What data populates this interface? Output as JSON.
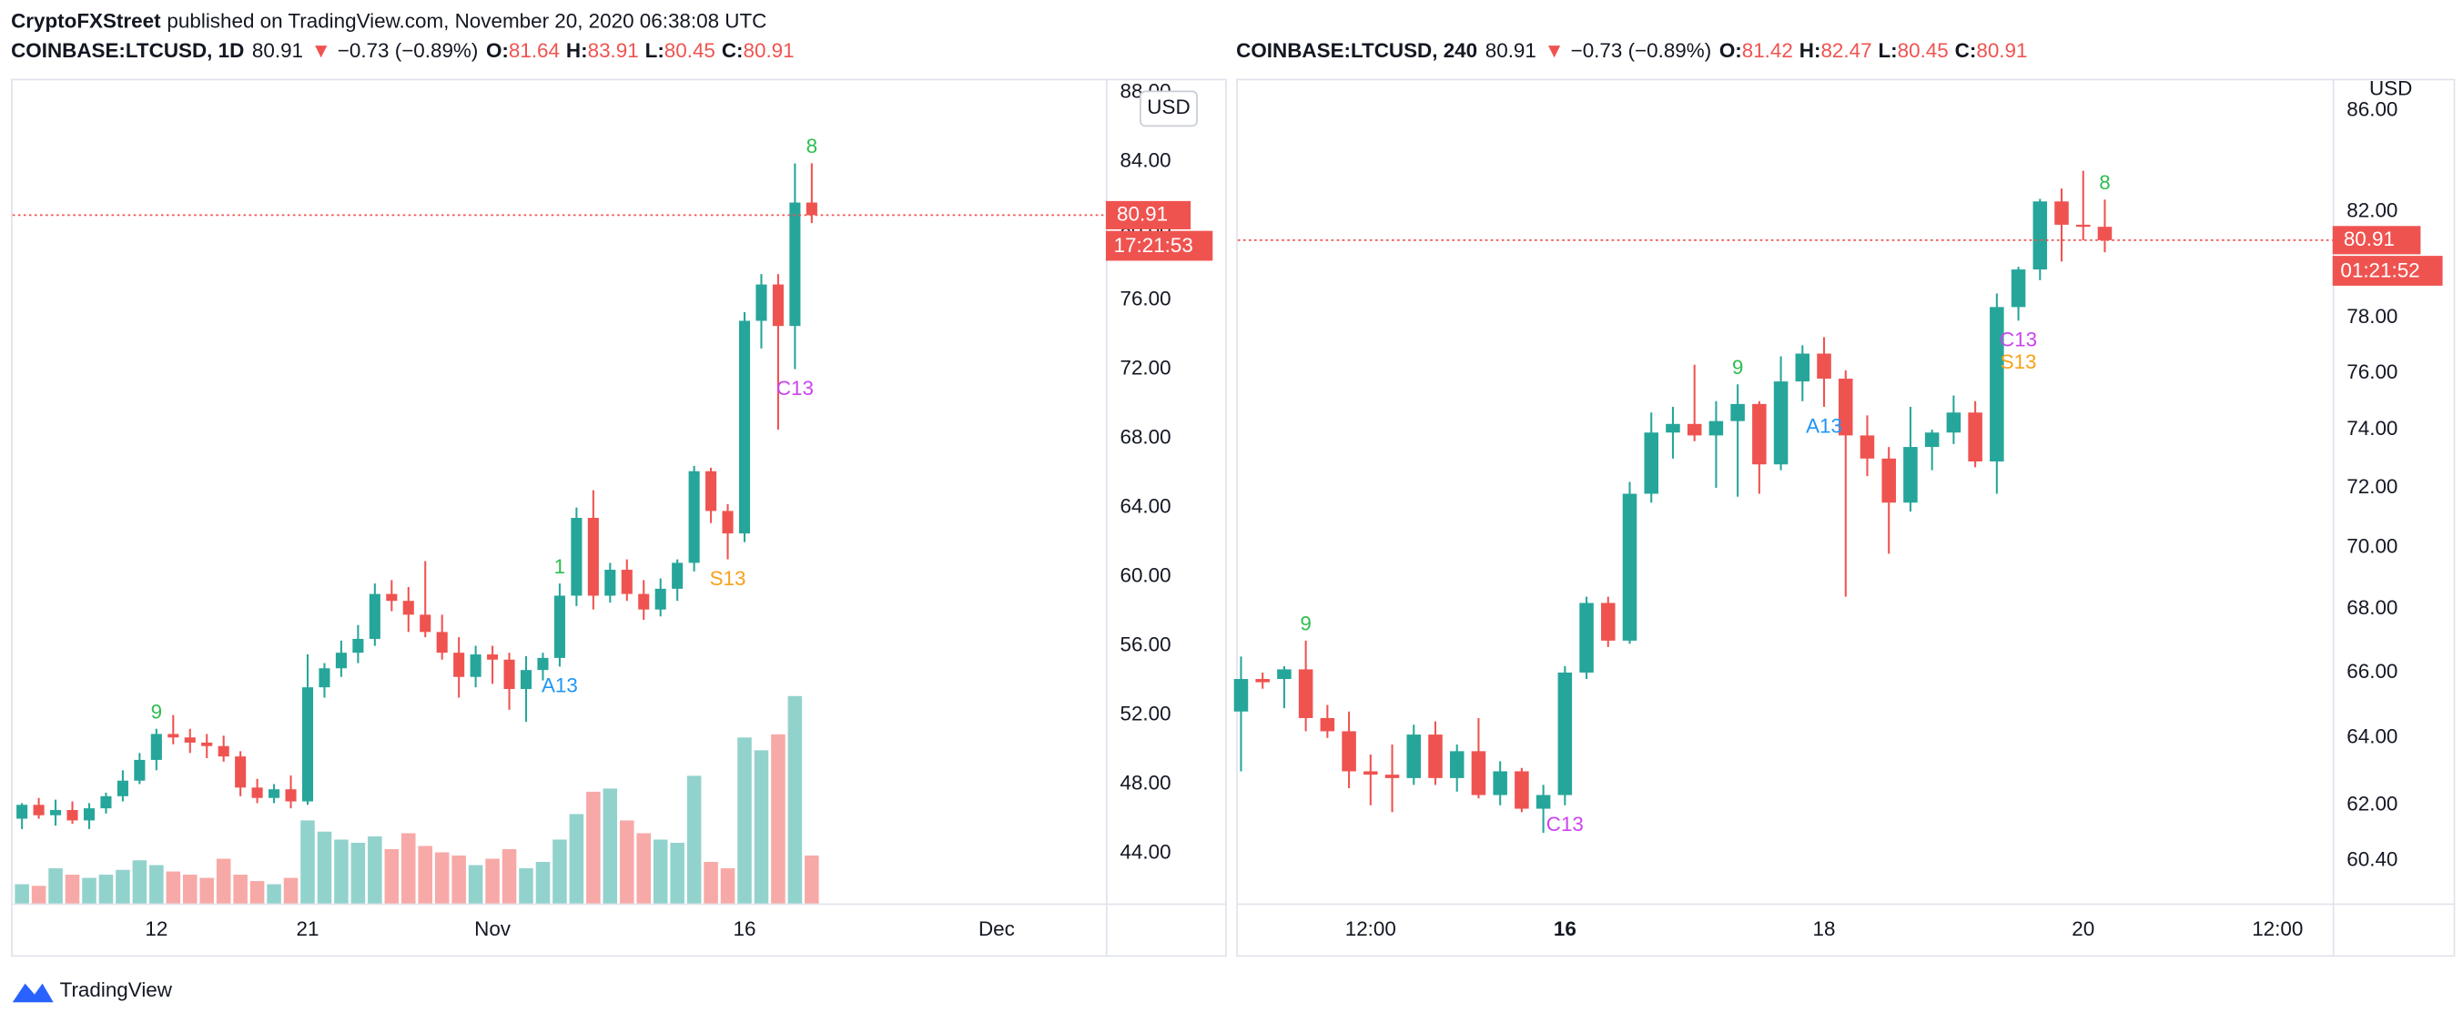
{
  "header": {
    "publisher": "CryptoFXStreet",
    "published": "published on TradingView.com, November 20, 2020 06:38:08 UTC"
  },
  "branding": "TradingView",
  "chart_data": [
    {
      "type": "candlestick",
      "symbol": "COINBASE:LTCUSD, 1D",
      "arrow": "▼",
      "change": "−0.73 (−0.89%)",
      "ohlc_labels": [
        "O:",
        "H:",
        "L:",
        "C:"
      ],
      "currency": "USD",
      "countdown": "17:21:53",
      "up_color": "#26a69a",
      "down_color": "#ef5350",
      "log_scale": false,
      "grid": false,
      "open": [
        46.0,
        46.8,
        46.2,
        46.5,
        45.9,
        46.6,
        47.3,
        48.2,
        49.4,
        50.9,
        50.7,
        50.4,
        50.2,
        49.6,
        47.8,
        47.2,
        47.7,
        47.0,
        53.6,
        54.7,
        55.6,
        56.4,
        59.0,
        58.6,
        57.8,
        56.8,
        55.6,
        54.2,
        55.5,
        55.2,
        53.5,
        54.6,
        55.3,
        58.9,
        63.4,
        58.9,
        60.4,
        59.0,
        58.1,
        59.3,
        60.8,
        66.1,
        63.8,
        62.5,
        74.8,
        76.9,
        74.5,
        81.64
      ],
      "high": [
        46.9,
        47.2,
        47.1,
        47.0,
        46.9,
        47.5,
        48.8,
        49.8,
        51.2,
        52.0,
        51.2,
        50.9,
        50.8,
        49.9,
        48.3,
        48.0,
        48.5,
        55.5,
        55.0,
        56.3,
        57.2,
        59.6,
        59.8,
        59.4,
        60.9,
        57.8,
        56.5,
        56.0,
        56.0,
        55.6,
        55.4,
        55.6,
        59.6,
        64.0,
        65.0,
        60.8,
        61.0,
        59.8,
        59.9,
        61.0,
        66.4,
        66.3,
        64.2,
        75.3,
        77.5,
        77.5,
        83.9,
        83.91
      ],
      "low": [
        45.4,
        46.0,
        45.6,
        45.7,
        45.4,
        46.3,
        47.0,
        48.0,
        48.8,
        50.3,
        49.8,
        49.5,
        49.3,
        47.3,
        46.9,
        46.9,
        46.6,
        46.8,
        53.0,
        54.2,
        55.0,
        56.0,
        58.0,
        56.8,
        56.5,
        55.2,
        53.0,
        53.6,
        53.8,
        52.3,
        51.6,
        54.0,
        54.8,
        58.3,
        58.1,
        58.5,
        58.6,
        57.5,
        57.7,
        58.6,
        60.3,
        63.1,
        61.0,
        62.0,
        73.2,
        68.5,
        72.0,
        80.45
      ],
      "close": [
        46.8,
        46.2,
        46.5,
        45.9,
        46.6,
        47.3,
        48.2,
        49.4,
        50.9,
        50.7,
        50.4,
        50.2,
        49.6,
        47.8,
        47.2,
        47.7,
        47.0,
        53.6,
        54.7,
        55.6,
        56.4,
        59.0,
        58.6,
        57.8,
        56.8,
        55.6,
        54.2,
        55.5,
        55.2,
        53.5,
        54.6,
        55.3,
        58.9,
        63.4,
        58.9,
        60.4,
        59.0,
        58.1,
        59.3,
        60.8,
        66.1,
        63.8,
        62.5,
        74.8,
        76.9,
        74.5,
        81.64,
        80.91
      ],
      "volume": [
        12,
        11,
        22,
        18,
        16,
        18,
        21,
        27,
        24,
        20,
        18,
        16,
        28,
        18,
        14,
        12,
        16,
        52,
        45,
        40,
        38,
        42,
        34,
        44,
        36,
        32,
        30,
        24,
        28,
        34,
        22,
        26,
        40,
        56,
        70,
        72,
        52,
        44,
        40,
        38,
        80,
        26,
        22,
        104,
        96,
        106,
        130,
        30
      ],
      "xlim": [
        -0.56,
        64.5
      ],
      "xticks": [
        {
          "value": 8,
          "label": "12"
        },
        {
          "value": 17,
          "label": "21"
        },
        {
          "value": 28,
          "label": "Nov"
        },
        {
          "value": 43,
          "label": "16"
        },
        {
          "value": 58,
          "label": "Dec"
        }
      ],
      "ylim": [
        41.1,
        88.8
      ],
      "yticks": [
        {
          "value": 44,
          "label": "44.00"
        },
        {
          "value": 48,
          "label": "48.00"
        },
        {
          "value": 52,
          "label": "52.00"
        },
        {
          "value": 56,
          "label": "56.00"
        },
        {
          "value": 60,
          "label": "60.00"
        },
        {
          "value": 64,
          "label": "64.00"
        },
        {
          "value": 68,
          "label": "68.00"
        },
        {
          "value": 72,
          "label": "72.00"
        },
        {
          "value": 76,
          "label": "76.00"
        },
        {
          "value": 80,
          "label": "80.00"
        },
        {
          "value": 84,
          "label": "84.00"
        },
        {
          "value": 88,
          "label": "88.00"
        }
      ],
      "annotations": [
        {
          "text": "9",
          "candle": 8,
          "position": "above",
          "color": "#2ebd4f"
        },
        {
          "text": "1",
          "candle": 32,
          "position": "above",
          "color": "#2ebd4f"
        },
        {
          "text": "A13",
          "candle": 32,
          "position": "below",
          "color": "#2196f3"
        },
        {
          "text": "S13",
          "candle": 42,
          "position": "below",
          "color": "#f7a21b"
        },
        {
          "text": "C13",
          "candle": 46,
          "position": "below",
          "color": "#cc44ee"
        },
        {
          "text": "8",
          "candle": 47,
          "position": "above",
          "color": "#2ebd4f"
        }
      ]
    },
    {
      "type": "candlestick",
      "symbol": "COINBASE:LTCUSD, 240",
      "arrow": "▼",
      "change": "−0.73 (−0.89%)",
      "ohlc_labels": [
        "O:",
        "H:",
        "L:",
        "C:"
      ],
      "currency": "USD",
      "countdown": "01:21:52",
      "up_color": "#26a69a",
      "down_color": "#ef5350",
      "log_scale": true,
      "grid": false,
      "open": [
        64.8,
        65.8,
        65.8,
        66.1,
        64.6,
        64.2,
        63.0,
        62.9,
        62.8,
        64.1,
        62.8,
        63.6,
        62.3,
        63.0,
        61.9,
        62.3,
        66.0,
        68.2,
        67.0,
        71.8,
        73.9,
        74.2,
        73.8,
        74.3,
        74.9,
        72.8,
        75.7,
        76.7,
        75.8,
        73.8,
        73.0,
        71.5,
        73.4,
        73.9,
        74.6,
        72.9,
        78.4,
        79.8,
        82.4,
        81.5,
        81.42
      ],
      "high": [
        66.5,
        66.0,
        66.2,
        67.0,
        65.0,
        64.8,
        63.5,
        63.8,
        64.4,
        64.5,
        63.8,
        64.6,
        63.3,
        63.1,
        62.6,
        66.2,
        68.4,
        68.4,
        72.2,
        74.6,
        74.8,
        76.3,
        75.0,
        75.6,
        75.0,
        76.6,
        77.0,
        77.3,
        76.1,
        74.5,
        73.4,
        74.8,
        74.0,
        75.2,
        75.0,
        78.9,
        79.9,
        82.5,
        82.9,
        83.6,
        82.47
      ],
      "low": [
        63.0,
        65.5,
        64.9,
        64.2,
        64.0,
        62.5,
        62.0,
        61.8,
        62.6,
        62.6,
        62.4,
        62.2,
        62.0,
        61.8,
        61.2,
        62.0,
        65.8,
        66.8,
        66.9,
        71.5,
        73.0,
        73.6,
        72.0,
        71.7,
        71.8,
        72.6,
        75.0,
        74.8,
        68.4,
        72.4,
        69.8,
        71.2,
        72.6,
        73.5,
        72.7,
        71.8,
        77.9,
        79.4,
        80.1,
        80.9,
        80.45
      ],
      "close": [
        65.8,
        65.7,
        66.1,
        64.6,
        64.2,
        63.0,
        62.9,
        62.8,
        64.1,
        62.8,
        63.6,
        62.3,
        63.0,
        61.9,
        62.3,
        66.0,
        68.2,
        67.0,
        71.8,
        73.9,
        74.2,
        73.8,
        74.3,
        74.9,
        72.8,
        75.7,
        76.7,
        75.8,
        73.8,
        73.0,
        71.5,
        73.4,
        73.9,
        74.6,
        72.9,
        78.4,
        79.8,
        82.4,
        81.5,
        81.42,
        80.91
      ],
      "xlim": [
        -0.15,
        50.55
      ],
      "xticks": [
        {
          "value": 6,
          "label": "12:00"
        },
        {
          "value": 15,
          "label": "16"
        },
        {
          "value": 27,
          "label": "18"
        },
        {
          "value": 39,
          "label": "20"
        },
        {
          "value": 48,
          "label": "12:00"
        }
      ],
      "ylim": [
        59.2,
        87.3
      ],
      "yticks": [
        {
          "value": 60.4,
          "label": "60.40"
        },
        {
          "value": 62,
          "label": "62.00"
        },
        {
          "value": 64,
          "label": "64.00"
        },
        {
          "value": 66,
          "label": "66.00"
        },
        {
          "value": 68,
          "label": "68.00"
        },
        {
          "value": 70,
          "label": "70.00"
        },
        {
          "value": 72,
          "label": "72.00"
        },
        {
          "value": 74,
          "label": "74.00"
        },
        {
          "value": 76,
          "label": "76.00"
        },
        {
          "value": 78,
          "label": "78.00"
        },
        {
          "value": 82,
          "label": "82.00"
        },
        {
          "value": 86,
          "label": "86.00"
        }
      ],
      "annotations": [
        {
          "text": "9",
          "candle": 3,
          "position": "above",
          "color": "#2ebd4f"
        },
        {
          "text": "C13",
          "candle": 15,
          "position": "below",
          "color": "#cc44ee"
        },
        {
          "text": "9",
          "candle": 23,
          "position": "above",
          "color": "#2ebd4f"
        },
        {
          "text": "A13",
          "candle": 27,
          "position": "below",
          "color": "#2196f3"
        },
        {
          "text": "C13",
          "candle": 36,
          "position": "below",
          "color": "#cc44ee"
        },
        {
          "text": "S13",
          "candle": 36,
          "position": "below",
          "color": "#f7a21b"
        },
        {
          "text": "8",
          "candle": 40,
          "position": "above",
          "color": "#2ebd4f"
        }
      ]
    }
  ]
}
